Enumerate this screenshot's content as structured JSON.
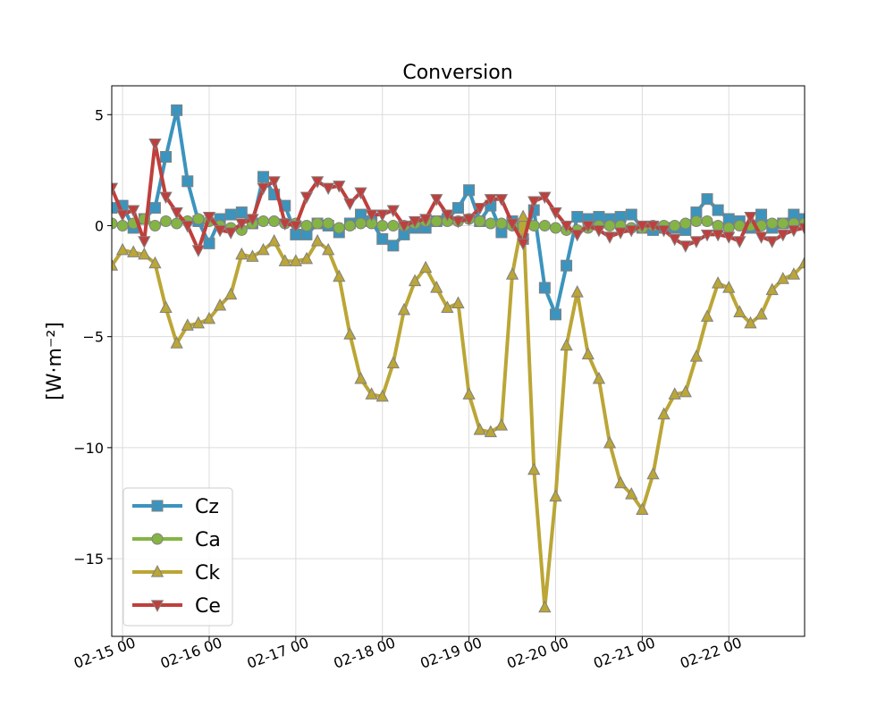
{
  "chart_data": {
    "type": "line",
    "title": "Conversion",
    "xlabel": "",
    "ylabel": "[W·m⁻²]",
    "x_start": "02-14 21",
    "x_step_hours": 3,
    "xlim": [
      "02-14 21",
      "02-22 21"
    ],
    "ylim": [
      -18.5,
      6.3
    ],
    "y_ticks": [
      5,
      0,
      -5,
      -10,
      -15
    ],
    "y_tick_labels": [
      "5",
      "0",
      "−5",
      "−10",
      "−15"
    ],
    "x_ticks": [
      "02-15 00",
      "02-16 00",
      "02-17 00",
      "02-18 00",
      "02-19 00",
      "02-20 00",
      "02-21 00",
      "02-22 00"
    ],
    "grid": true,
    "legend_position": "lower-left",
    "series": [
      {
        "name": "Cz",
        "color": "#3b94be",
        "marker": "square",
        "values": [
          0.8,
          0.9,
          -0.1,
          0.3,
          0.8,
          3.1,
          5.2,
          2.0,
          0.2,
          -0.8,
          0.3,
          0.5,
          0.6,
          0.1,
          2.2,
          1.4,
          0.9,
          -0.4,
          -0.4,
          0.1,
          0.0,
          -0.3,
          0.1,
          0.5,
          0.2,
          -0.6,
          -0.9,
          -0.4,
          -0.1,
          -0.1,
          0.2,
          0.3,
          0.8,
          1.6,
          0.2,
          0.9,
          -0.3,
          0.2,
          -0.6,
          0.7,
          -2.8,
          -4.0,
          -1.8,
          0.4,
          0.3,
          0.4,
          0.3,
          0.4,
          0.5,
          -0.1,
          -0.2,
          -0.1,
          -0.1,
          -0.2,
          0.6,
          1.2,
          0.7,
          0.3,
          0.2,
          -0.1,
          0.5,
          -0.1,
          0.1,
          0.5,
          0.3
        ]
      },
      {
        "name": "Ca",
        "color": "#84b544",
        "marker": "circle",
        "values": [
          0.1,
          0.0,
          0.1,
          0.3,
          0.0,
          0.2,
          0.1,
          0.2,
          0.3,
          0.2,
          0.0,
          -0.1,
          -0.2,
          0.1,
          0.2,
          0.2,
          0.1,
          0.1,
          0.0,
          0.1,
          0.1,
          -0.1,
          0.0,
          0.1,
          0.1,
          0.0,
          0.0,
          0.0,
          0.1,
          0.2,
          0.2,
          0.2,
          0.2,
          0.3,
          0.2,
          0.1,
          0.1,
          0.0,
          0.0,
          0.0,
          0.0,
          -0.1,
          -0.2,
          -0.2,
          -0.1,
          0.0,
          0.0,
          0.0,
          -0.1,
          -0.1,
          0.0,
          0.0,
          0.0,
          0.1,
          0.2,
          0.2,
          0.0,
          -0.1,
          0.0,
          0.0,
          0.0,
          0.1,
          0.1,
          0.1,
          0.1
        ]
      },
      {
        "name": "Ck",
        "color": "#bba636",
        "marker": "triangle-up",
        "values": [
          -1.8,
          -1.1,
          -1.2,
          -1.3,
          -1.7,
          -3.7,
          -5.3,
          -4.5,
          -4.4,
          -4.2,
          -3.6,
          -3.1,
          -1.3,
          -1.4,
          -1.1,
          -0.7,
          -1.6,
          -1.6,
          -1.5,
          -0.7,
          -1.1,
          -2.3,
          -4.9,
          -6.9,
          -7.6,
          -7.7,
          -6.2,
          -3.8,
          -2.5,
          -1.9,
          -2.8,
          -3.7,
          -3.5,
          -7.6,
          -9.2,
          -9.3,
          -9.0,
          -2.2,
          0.4,
          -11.0,
          -17.2,
          -12.2,
          -5.4,
          -3.0,
          -5.8,
          -6.9,
          -9.8,
          -11.6,
          -12.1,
          -12.8,
          -11.2,
          -8.5,
          -7.6,
          -7.5,
          -5.9,
          -4.1,
          -2.6,
          -2.8,
          -3.9,
          -4.4,
          -4.0,
          -2.9,
          -2.4,
          -2.2,
          -1.7
        ]
      },
      {
        "name": "Ce",
        "color": "#bf3f3c",
        "marker": "triangle-down",
        "values": [
          1.7,
          0.5,
          0.7,
          -0.7,
          3.7,
          1.3,
          0.6,
          0.0,
          -1.1,
          0.4,
          -0.2,
          -0.3,
          0.1,
          0.3,
          1.7,
          2.0,
          0.1,
          0.0,
          1.3,
          2.0,
          1.7,
          1.8,
          1.0,
          1.5,
          0.5,
          0.5,
          0.7,
          0.0,
          0.2,
          0.3,
          1.2,
          0.5,
          0.2,
          0.3,
          0.8,
          1.2,
          1.2,
          0.1,
          -0.8,
          1.1,
          1.3,
          0.6,
          0.0,
          -0.4,
          0.0,
          -0.2,
          -0.5,
          -0.3,
          -0.2,
          0.0,
          0.0,
          -0.2,
          -0.6,
          -0.9,
          -0.7,
          -0.4,
          -0.4,
          -0.5,
          -0.7,
          0.4,
          -0.5,
          -0.7,
          -0.4,
          -0.2,
          -0.1
        ]
      }
    ]
  }
}
